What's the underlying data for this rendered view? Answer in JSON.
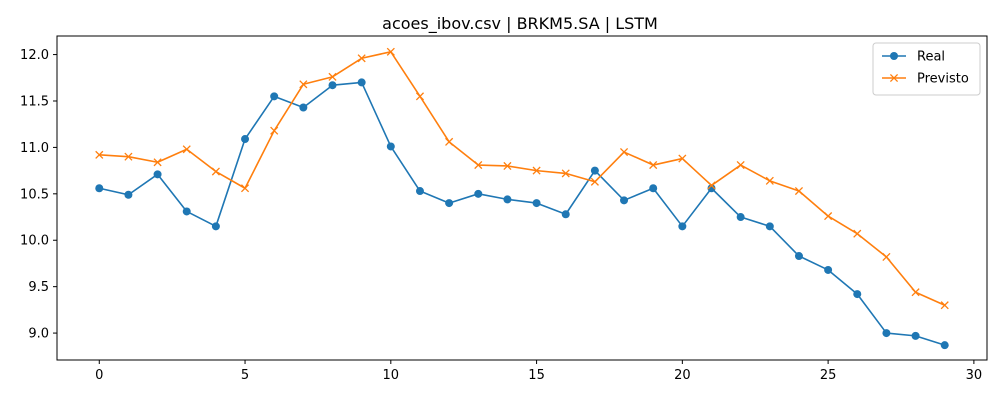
{
  "chart_data": {
    "type": "line",
    "title": "acoes_ibov.csv | BRKM5.SA | LSTM",
    "xlabel": "",
    "ylabel": "",
    "x": [
      0,
      1,
      2,
      3,
      4,
      5,
      6,
      7,
      8,
      9,
      10,
      11,
      12,
      13,
      14,
      15,
      16,
      17,
      18,
      19,
      20,
      21,
      22,
      23,
      24,
      25,
      26,
      27,
      28,
      29
    ],
    "xlim": [
      -1.45,
      30.45
    ],
    "ylim": [
      8.71,
      12.2
    ],
    "xticks": [
      0,
      5,
      10,
      15,
      20,
      25,
      30
    ],
    "xtick_labels": [
      "0",
      "5",
      "10",
      "15",
      "20",
      "25",
      "30"
    ],
    "yticks": [
      9.0,
      9.5,
      10.0,
      10.5,
      11.0,
      11.5,
      12.0
    ],
    "ytick_labels": [
      "9.0",
      "9.5",
      "10.0",
      "10.5",
      "11.0",
      "11.5",
      "12.0"
    ],
    "grid": false,
    "legend_position": "top-right",
    "series": [
      {
        "name": "Real",
        "color": "#1f77b4",
        "marker": "circle",
        "values": [
          10.56,
          10.49,
          10.71,
          10.31,
          10.15,
          11.09,
          11.55,
          11.43,
          11.67,
          11.7,
          11.01,
          10.53,
          10.4,
          10.5,
          10.44,
          10.4,
          10.28,
          10.75,
          10.43,
          10.56,
          10.15,
          10.56,
          10.25,
          10.15,
          9.83,
          9.68,
          9.42,
          9.0,
          8.97,
          8.87
        ]
      },
      {
        "name": "Previsto",
        "color": "#ff7f0e",
        "marker": "x",
        "values": [
          10.92,
          10.9,
          10.84,
          10.98,
          10.74,
          10.56,
          11.18,
          11.68,
          11.76,
          11.96,
          12.03,
          11.55,
          11.06,
          10.81,
          10.8,
          10.75,
          10.72,
          10.63,
          10.95,
          10.81,
          10.88,
          10.59,
          10.81,
          10.64,
          10.53,
          10.26,
          10.07,
          9.82,
          9.44,
          9.3
        ]
      }
    ]
  }
}
